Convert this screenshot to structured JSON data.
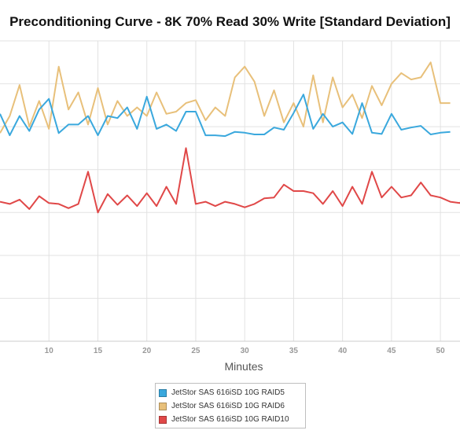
{
  "chart_data": {
    "type": "line",
    "title": "Preconditioning Curve - 8K 70% Read 30% Write [Standard Deviation]",
    "xlabel": "Minutes",
    "ylabel": "",
    "x_start": 5,
    "xlim": [
      5,
      52
    ],
    "ylim": [
      0,
      7
    ],
    "x_ticks": [
      "10",
      "15",
      "20",
      "25",
      "30",
      "35",
      "40",
      "45",
      "50"
    ],
    "y_ticks": [],
    "grid": true,
    "legend_position": "bottom",
    "series": [
      {
        "name": "JetStor SAS 616iSD 10G RAID5",
        "color": "#3aa8dd",
        "values": [
          5.3,
          4.8,
          5.25,
          4.9,
          5.4,
          5.65,
          4.85,
          5.05,
          5.05,
          5.25,
          4.8,
          5.25,
          5.2,
          5.45,
          4.95,
          5.7,
          4.95,
          5.05,
          4.9,
          5.35,
          5.35,
          4.8,
          4.8,
          4.78,
          4.88,
          4.86,
          4.82,
          4.82,
          4.98,
          4.93,
          5.32,
          5.75,
          4.95,
          5.3,
          5.0,
          5.1,
          4.83,
          5.55,
          4.86,
          4.83,
          5.3,
          4.93,
          4.98,
          5.02,
          4.82,
          4.86,
          4.88
        ]
      },
      {
        "name": "JetStor SAS 616iSD 10G RAID6",
        "color": "#e8c07a",
        "values": [
          4.85,
          5.25,
          5.97,
          5.0,
          5.6,
          4.95,
          6.4,
          5.4,
          5.8,
          5.05,
          5.9,
          5.05,
          5.6,
          5.25,
          5.45,
          5.25,
          5.8,
          5.3,
          5.35,
          5.55,
          5.62,
          5.15,
          5.45,
          5.25,
          6.15,
          6.4,
          6.05,
          5.25,
          5.85,
          5.1,
          5.55,
          5.0,
          6.2,
          5.1,
          6.15,
          5.45,
          5.75,
          5.2,
          5.95,
          5.5,
          6.0,
          6.25,
          6.1,
          6.15,
          6.5,
          5.55,
          5.55
        ]
      },
      {
        "name": "JetStor SAS 616iSD 10G RAID10",
        "color": "#e04848",
        "values": [
          3.25,
          3.2,
          3.3,
          3.08,
          3.38,
          3.22,
          3.2,
          3.1,
          3.2,
          3.95,
          3.0,
          3.43,
          3.18,
          3.4,
          3.15,
          3.45,
          3.15,
          3.6,
          3.2,
          4.5,
          3.2,
          3.25,
          3.15,
          3.25,
          3.2,
          3.12,
          3.2,
          3.33,
          3.35,
          3.65,
          3.5,
          3.5,
          3.45,
          3.2,
          3.5,
          3.15,
          3.6,
          3.2,
          3.95,
          3.35,
          3.6,
          3.35,
          3.4,
          3.7,
          3.4,
          3.35,
          3.25,
          3.22,
          3.6,
          3.1,
          3.12
        ]
      }
    ]
  }
}
